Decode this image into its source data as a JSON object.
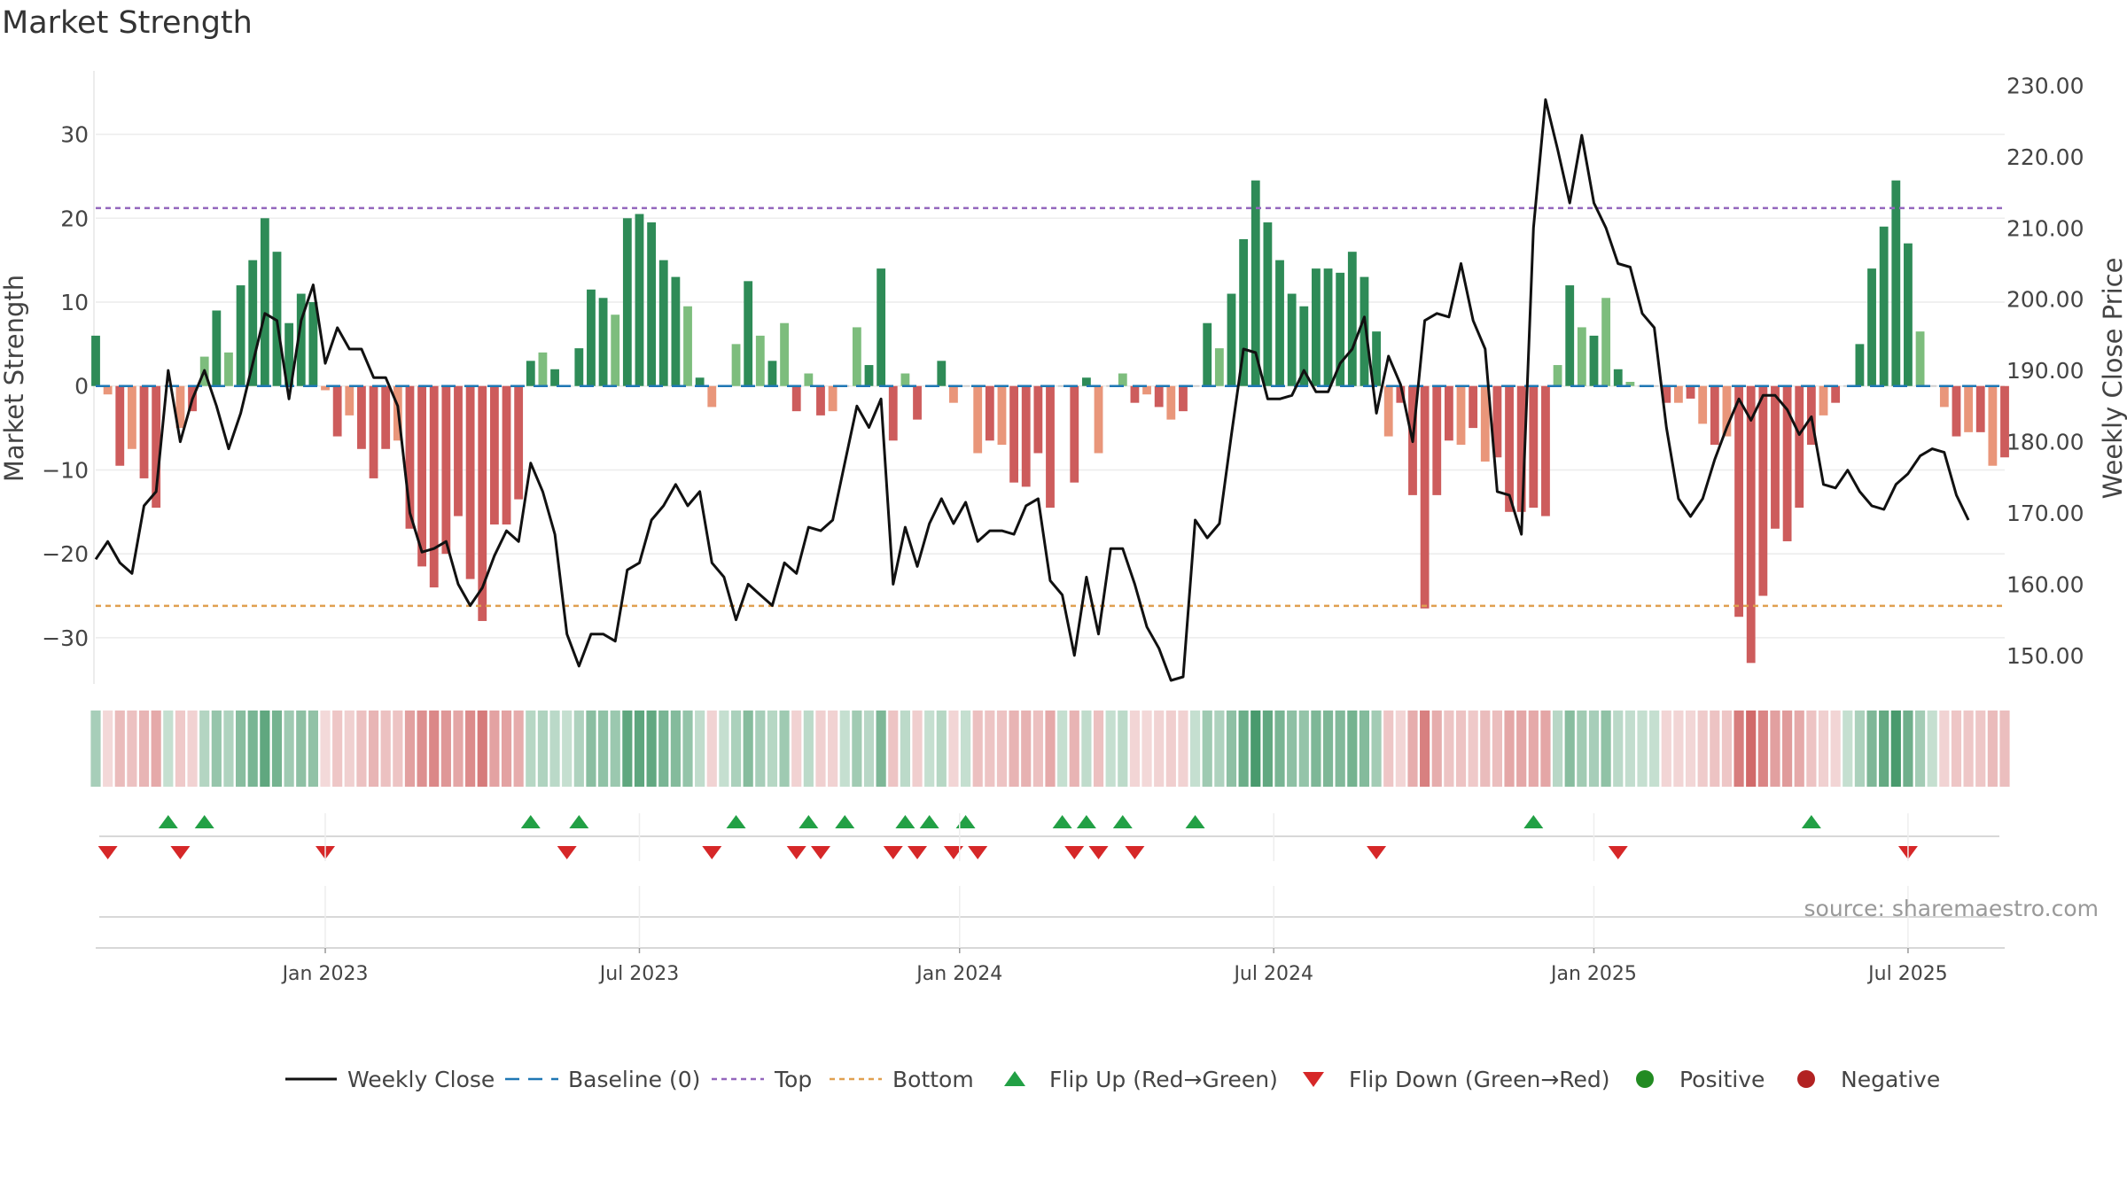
{
  "chart_data": {
    "type": "bar",
    "title": "Market Strength",
    "left_axis_label": "Market Strength",
    "right_axis_label": "Weekly Close Price",
    "left_axis_range": [
      -35.5,
      36.5
    ],
    "left_axis_ticks": [
      30,
      20,
      10,
      0,
      -10,
      -20,
      -30
    ],
    "left_tick_labels": [
      "30",
      "20",
      "10",
      "0",
      "−10",
      "−20",
      "−30"
    ],
    "right_axis_range": [
      146,
      230.8
    ],
    "right_axis_ticks": [
      150,
      160,
      170,
      180,
      190,
      200,
      210,
      220,
      230
    ],
    "right_tick_labels": [
      "150.00",
      "160.00",
      "170.00",
      "180.00",
      "190.00",
      "200.00",
      "210.00",
      "220.00",
      "230.00"
    ],
    "top_line": 21.2,
    "bottom_line": -26.2,
    "baseline": 0,
    "x_ticks": [
      {
        "label": "Jan 2023",
        "week": 19
      },
      {
        "label": "Jul 2023",
        "week": 45
      },
      {
        "label": "Jan 2024",
        "week": 71.5
      },
      {
        "label": "Jul 2024",
        "week": 97.5
      },
      {
        "label": "Jan 2025",
        "week": 124
      },
      {
        "label": "Jul 2025",
        "week": 150
      }
    ],
    "strength": [
      6,
      -1,
      -9.5,
      -7.5,
      -11,
      -14.5,
      0,
      -5,
      -3,
      3.5,
      9,
      4,
      12,
      15,
      20,
      16,
      7.5,
      11,
      10,
      -0.5,
      -6,
      -3.5,
      -7.5,
      -11,
      -7.5,
      -6.5,
      -17,
      -21.5,
      -24,
      -20,
      -15.5,
      -23,
      -28,
      -16.5,
      -16.5,
      -13.5,
      3,
      4,
      2,
      0,
      4.5,
      11.5,
      10.5,
      8.5,
      20,
      20.5,
      19.5,
      15,
      13,
      9.5,
      1,
      -2.5,
      0,
      5,
      12.5,
      6,
      3,
      7.5,
      -3,
      1.5,
      -3.5,
      -3,
      0,
      7,
      2.5,
      14,
      -6.5,
      1.5,
      -4,
      0,
      3,
      -2,
      0,
      -8,
      -6.5,
      -7,
      -11.5,
      -12,
      -8,
      -14.5,
      0,
      -11.5,
      1,
      -8,
      0,
      1.5,
      -2,
      -1,
      -2.5,
      -4,
      -3,
      0,
      7.5,
      4.5,
      11,
      17.5,
      24.5,
      19.5,
      15,
      11,
      9.5,
      14,
      14,
      13.5,
      16,
      13,
      6.5,
      -6,
      -2,
      -13,
      -26.5,
      -13,
      -6.5,
      -7,
      -5,
      -9,
      -8.5,
      -15,
      -15,
      -14.5,
      -15.5,
      2.5,
      12,
      7,
      6,
      10.5,
      2,
      0.5,
      0,
      0,
      -2,
      -2,
      -1.5,
      -4.5,
      -7,
      -6,
      -27.5,
      -33,
      -25,
      -17,
      -18.5,
      -14.5,
      -7,
      -3.5,
      -2,
      0,
      5,
      14,
      19,
      24.5,
      17,
      6.5,
      0,
      -2.5,
      -6,
      -5.5,
      -5.5,
      -9.5,
      -8.5
    ],
    "weekly_close": [
      163.5,
      166,
      163,
      161.5,
      171,
      173,
      190,
      180,
      186,
      190,
      185,
      179,
      184,
      191,
      198,
      197,
      186,
      197,
      202,
      191,
      196,
      193,
      193,
      189,
      189,
      185,
      170,
      164.5,
      165,
      166,
      160,
      157,
      159.5,
      164,
      167.5,
      166,
      177,
      173,
      167,
      153,
      148.5,
      153,
      153,
      152,
      162,
      163,
      169,
      171,
      174,
      171,
      173,
      163,
      161,
      155,
      160,
      158.5,
      157,
      163,
      161.5,
      168,
      167.5,
      169,
      177,
      185,
      182,
      186,
      160,
      168,
      162.5,
      168.5,
      172,
      168.5,
      171.5,
      166,
      167.5,
      167.5,
      167,
      171,
      172,
      160.5,
      158.5,
      150,
      161,
      153,
      165,
      165,
      160,
      154,
      151,
      146.5,
      147,
      169,
      166.5,
      168.5,
      181,
      193,
      192.5,
      186,
      186,
      186.5,
      190,
      187,
      187,
      191,
      193,
      197.5,
      184,
      192,
      188,
      180,
      197,
      198,
      197.5,
      205,
      197,
      193,
      173,
      172.5,
      167,
      210,
      228,
      221,
      213.5,
      223,
      213.5,
      210,
      205,
      204.5,
      198,
      196,
      182,
      172,
      169.5,
      172,
      177.5,
      182,
      186,
      183,
      186.5,
      186.5,
      184.5,
      181,
      183.5,
      174,
      173.5,
      176,
      173,
      171,
      170.5,
      174,
      175.5,
      178,
      179,
      178.5,
      172.5,
      169
    ],
    "flip_up_weeks": [
      6,
      9,
      36,
      40,
      53,
      59,
      62,
      67,
      69,
      72,
      80,
      82,
      85,
      91,
      119,
      142
    ],
    "flip_down_weeks": [
      1,
      7,
      19,
      39,
      51,
      58,
      60,
      66,
      68,
      71,
      73,
      81,
      83,
      86,
      106,
      126,
      150
    ],
    "legend": [
      {
        "key": "weekly-close",
        "label": "Weekly Close"
      },
      {
        "key": "baseline",
        "label": "Baseline (0)"
      },
      {
        "key": "top",
        "label": "Top"
      },
      {
        "key": "bottom",
        "label": "Bottom"
      },
      {
        "key": "flip-up",
        "label": "Flip Up (Red→Green)"
      },
      {
        "key": "flip-down",
        "label": "Flip Down (Green→Red)"
      },
      {
        "key": "positive",
        "label": "Positive"
      },
      {
        "key": "negative",
        "label": "Negative"
      }
    ]
  },
  "source_text": "source: sharemaestro.com",
  "colors": {
    "pos_strong": "#2e8b57",
    "pos_weak": "#7dbd7d",
    "neg_strong": "#cd5c5c",
    "neg_weak": "#e9967a",
    "close_line": "#111111",
    "baseline": "#1f77b4",
    "top": "#9467bd",
    "bottom": "#e0a050",
    "flip_up": "#22a045",
    "flip_down": "#d62728",
    "positive_dot": "#228b22",
    "negative_dot": "#b22222"
  }
}
